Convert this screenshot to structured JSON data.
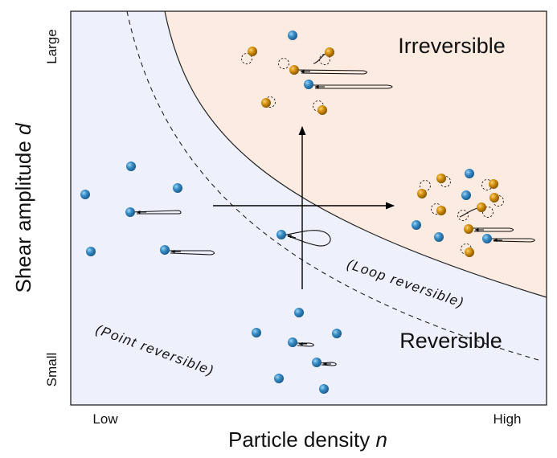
{
  "axes": {
    "x_label": "Particle density",
    "x_symbol": "n",
    "y_label": "Shear amplitude",
    "y_symbol": "d",
    "x_min_label": "Low",
    "x_max_label": "High",
    "y_min_label": "Small",
    "y_max_label": "Large"
  },
  "regions": {
    "irreversible": "Irreversible",
    "reversible": "Reversible",
    "loop_reversible": "(Loop reversible)",
    "point_reversible": "(Point reversible)"
  },
  "colors": {
    "reversible_fill": "#eef1fc",
    "irreversible_fill": "#fcebe0",
    "blue_particle": "#3a8fc9",
    "orange_particle": "#d8920e"
  }
}
